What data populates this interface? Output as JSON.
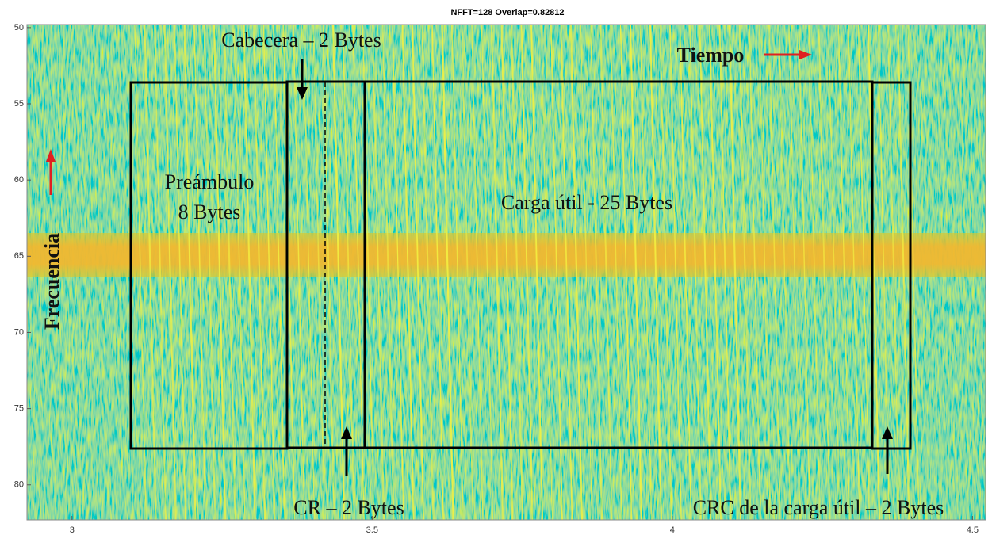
{
  "chart_data": {
    "type": "spectrogram",
    "title": "NFFT=128 Overlap=0.82812",
    "xlim": [
      2.925,
      4.522
    ],
    "xticks": [
      3,
      3.5,
      4,
      4.5
    ],
    "ylim": [
      49.8,
      82.3
    ],
    "yticks": [
      50,
      55,
      60,
      65,
      70,
      75,
      80
    ],
    "y_reversed": true,
    "annotations": {
      "header": "Cabecera – 2 Bytes",
      "time": "Tiempo",
      "preamble_1": "Preámbulo",
      "preamble_2": "8 Bytes",
      "payload": "Carga útil - 25 Bytes",
      "frequency": "Frecuencia",
      "cr": "CR – 2 Bytes",
      "crc": "CRC de la carga útil – 2 Bytes"
    }
  }
}
